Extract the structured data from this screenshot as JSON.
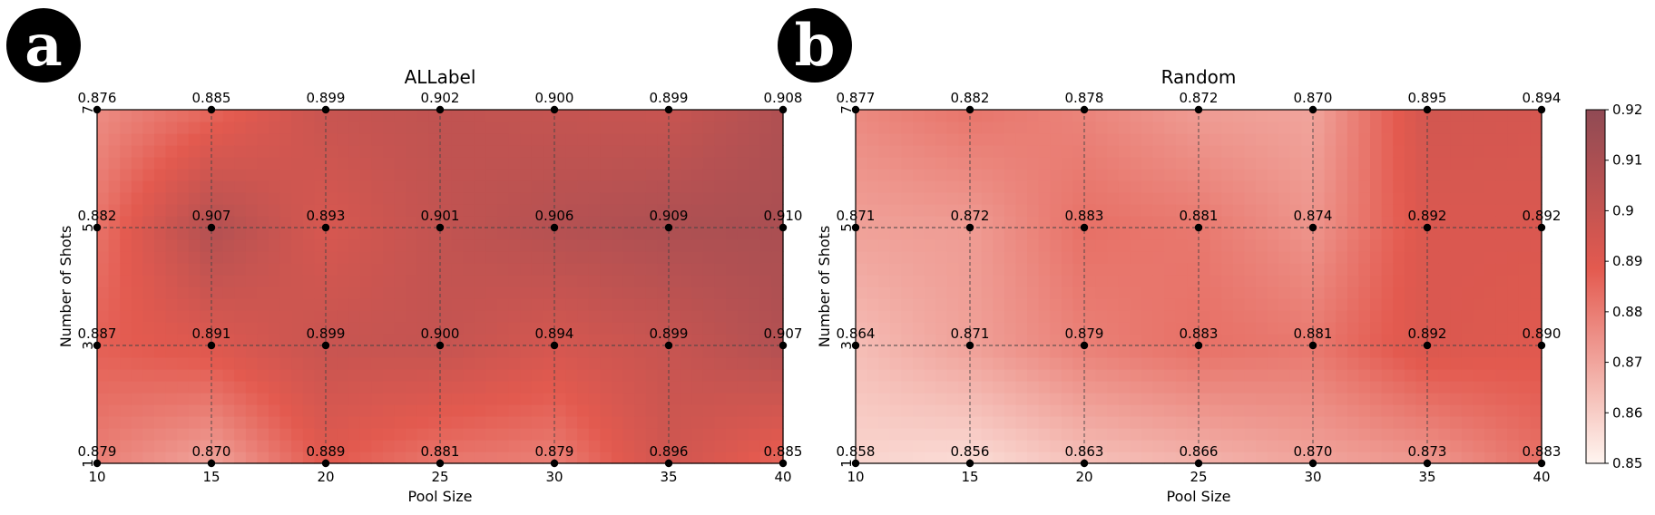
{
  "panels": [
    {
      "letter": "a"
    },
    {
      "letter": "b"
    }
  ],
  "chart_data": [
    {
      "type": "heatmap",
      "title": "ALLabel",
      "xlabel": "Pool Size",
      "ylabel": "Number of Shots",
      "x": [
        10,
        15,
        20,
        25,
        30,
        35,
        40
      ],
      "y": [
        1,
        3,
        5,
        7
      ],
      "xlim": [
        10,
        40
      ],
      "ylim": [
        1,
        7
      ],
      "grid": true,
      "values": [
        [
          "0.879",
          "0.870",
          "0.889",
          "0.881",
          "0.879",
          "0.896",
          "0.885"
        ],
        [
          "0.887",
          "0.891",
          "0.899",
          "0.900",
          "0.894",
          "0.899",
          "0.907"
        ],
        [
          "0.882",
          "0.907",
          "0.893",
          "0.901",
          "0.906",
          "0.909",
          "0.910"
        ],
        [
          "0.876",
          "0.885",
          "0.899",
          "0.902",
          "0.900",
          "0.899",
          "0.908"
        ]
      ]
    },
    {
      "type": "heatmap",
      "title": "Random",
      "xlabel": "Pool Size",
      "ylabel": "Number of Shots",
      "x": [
        10,
        15,
        20,
        25,
        30,
        35,
        40
      ],
      "y": [
        1,
        3,
        5,
        7
      ],
      "xlim": [
        10,
        40
      ],
      "ylim": [
        1,
        7
      ],
      "grid": true,
      "values": [
        [
          "0.858",
          "0.856",
          "0.863",
          "0.866",
          "0.870",
          "0.873",
          "0.883"
        ],
        [
          "0.864",
          "0.871",
          "0.879",
          "0.883",
          "0.881",
          "0.892",
          "0.890"
        ],
        [
          "0.871",
          "0.872",
          "0.883",
          "0.881",
          "0.874",
          "0.892",
          "0.892"
        ],
        [
          "0.877",
          "0.882",
          "0.878",
          "0.872",
          "0.870",
          "0.895",
          "0.894"
        ]
      ]
    }
  ],
  "colorbar": {
    "range": [
      0.85,
      0.92
    ],
    "ticks": [
      "0.85",
      "0.86",
      "0.87",
      "0.88",
      "0.89",
      "0.9",
      "0.91",
      "0.92"
    ],
    "color_low": "#fff5f0",
    "color_mid": "#e35a4f",
    "color_high": "#904a54"
  }
}
